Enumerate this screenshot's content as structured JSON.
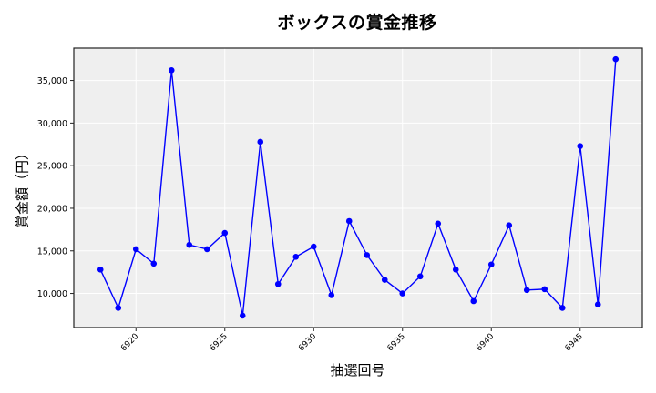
{
  "chart_data": {
    "type": "line",
    "title": "ボックスの賞金推移",
    "xlabel": "抽選回号",
    "ylabel": "賞金額（円）",
    "x": [
      6918,
      6919,
      6920,
      6921,
      6922,
      6923,
      6924,
      6925,
      6926,
      6927,
      6928,
      6929,
      6930,
      6931,
      6932,
      6933,
      6934,
      6935,
      6936,
      6937,
      6938,
      6939,
      6940,
      6941,
      6942,
      6943,
      6944,
      6945,
      6946,
      6947
    ],
    "series": [
      {
        "name": "ボックス",
        "color": "#0000ff",
        "marker": "circle",
        "values": [
          12800,
          8300,
          15200,
          13500,
          36200,
          15700,
          15200,
          17100,
          7400,
          27800,
          11100,
          14300,
          15500,
          9800,
          18500,
          14500,
          11600,
          10000,
          12000,
          18200,
          12800,
          9100,
          13400,
          18000,
          10400,
          10500,
          8300,
          27300,
          8700,
          37500
        ]
      }
    ],
    "xticks": [
      6920,
      6925,
      6930,
      6935,
      6940,
      6945
    ],
    "xtick_labels": [
      "6920",
      "6925",
      "6930",
      "6935",
      "6940",
      "6945"
    ],
    "yticks": [
      10000,
      15000,
      20000,
      25000,
      30000,
      35000
    ],
    "ytick_labels": [
      "10,000",
      "15,000",
      "20,000",
      "25,000",
      "30,000",
      "35,000"
    ],
    "xlim": [
      6916.5,
      6948.5
    ],
    "ylim": [
      6000,
      38800
    ],
    "grid": true,
    "legend": null,
    "plot_background": "#efefef",
    "grid_color": "#ffffff"
  }
}
